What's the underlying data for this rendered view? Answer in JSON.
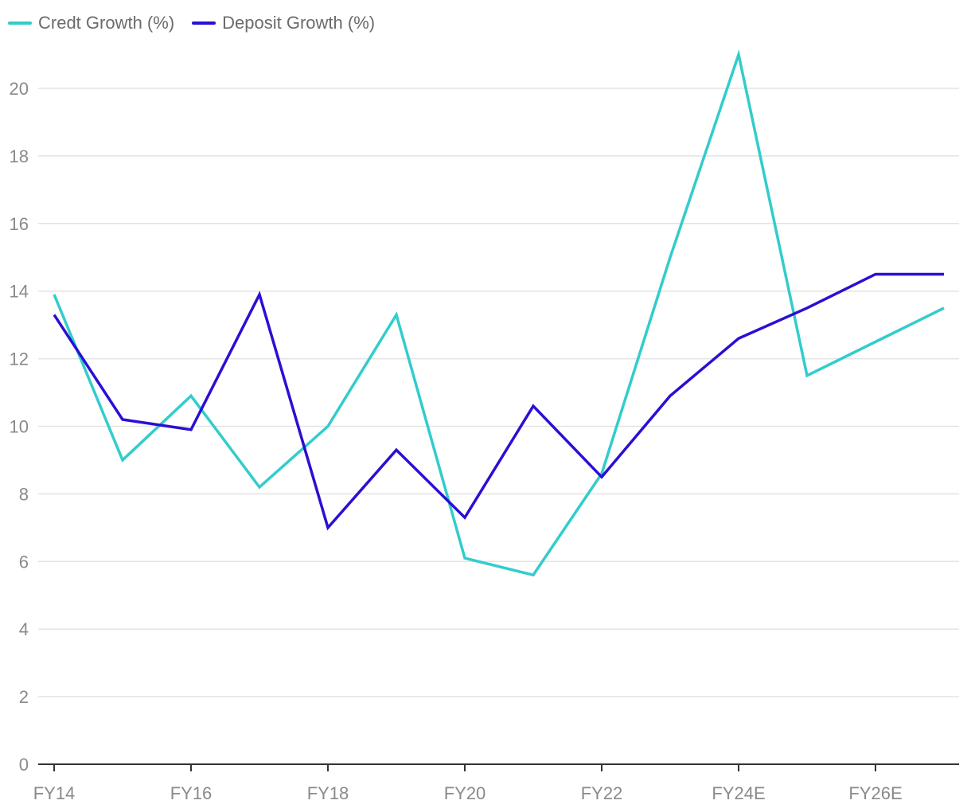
{
  "chart_data": {
    "type": "line",
    "title": "",
    "xlabel": "",
    "ylabel": "",
    "x": [
      "FY14",
      "FY15",
      "FY16",
      "FY17",
      "FY18",
      "FY19",
      "FY20",
      "FY21",
      "FY22",
      "FY23",
      "FY24E",
      "FY25E",
      "FY26E",
      "FY27E"
    ],
    "x_tick_labels": [
      "FY14",
      "FY16",
      "FY18",
      "FY20",
      "FY22",
      "FY24E",
      "FY26E"
    ],
    "ylim": [
      0,
      21
    ],
    "y_ticks": [
      0,
      2,
      4,
      6,
      8,
      10,
      12,
      14,
      16,
      18,
      20
    ],
    "grid": "horizontal",
    "legend_position": "top-left",
    "series": [
      {
        "name": "Credt Growth (%)",
        "color": "#33cccc",
        "values": [
          13.9,
          9.0,
          10.9,
          8.2,
          10.0,
          13.3,
          6.1,
          5.6,
          8.6,
          15.0,
          21.0,
          11.5,
          12.5,
          13.5
        ]
      },
      {
        "name": "Deposit Growth (%)",
        "color": "#2a0fd4",
        "values": [
          13.3,
          10.2,
          9.9,
          13.9,
          7.0,
          9.3,
          7.3,
          10.6,
          8.5,
          10.9,
          12.6,
          13.5,
          14.5,
          14.5
        ]
      }
    ]
  }
}
